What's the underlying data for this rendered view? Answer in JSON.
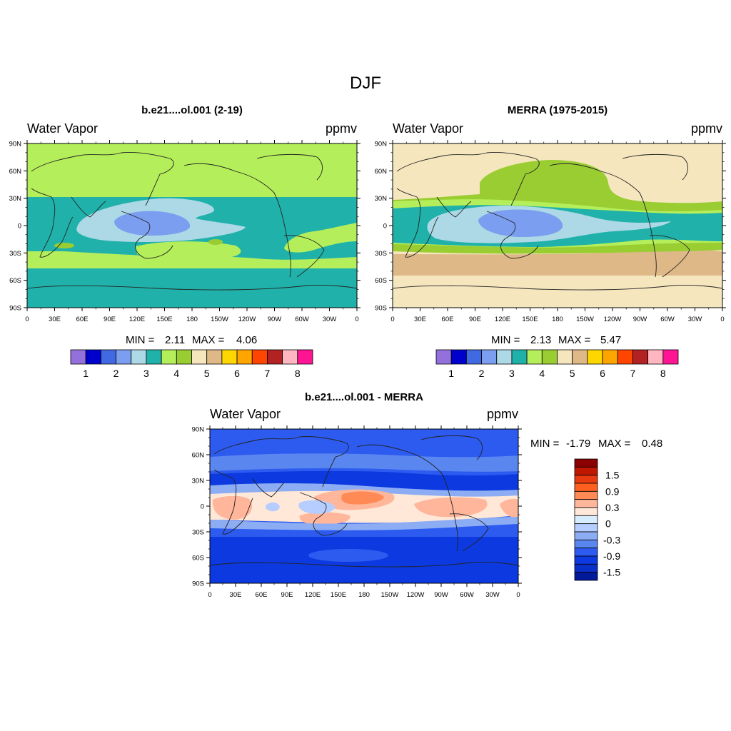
{
  "main_title": "DJF",
  "lat_ticks": [
    "90N",
    "60N",
    "30N",
    "0",
    "30S",
    "60S",
    "90S"
  ],
  "lon_ticks": [
    "0",
    "30E",
    "60E",
    "90E",
    "120E",
    "150E",
    "180",
    "150W",
    "120W",
    "90W",
    "60W",
    "30W",
    "0"
  ],
  "panels": [
    {
      "id": "model",
      "title": "b.e21....ol.001 (2-19)",
      "left_label": "Water Vapor",
      "right_label": "ppmv",
      "min_label": "MIN =",
      "min_value": "2.11",
      "max_label": "MAX =",
      "max_value": "4.06"
    },
    {
      "id": "merra",
      "title": "MERRA (1975-2015)",
      "left_label": "Water Vapor",
      "right_label": "ppmv",
      "min_label": "MIN =",
      "min_value": "2.13",
      "max_label": "MAX =",
      "max_value": "5.47"
    },
    {
      "id": "diff",
      "title": "b.e21....ol.001 - MERRA",
      "left_label": "Water Vapor",
      "right_label": "ppmv",
      "min_label": "MIN =",
      "min_value": "-1.79",
      "max_label": "MAX =",
      "max_value": "0.48"
    }
  ],
  "abs_colorbar": {
    "colors": [
      "#9370db",
      "#0000cd",
      "#4169e1",
      "#7b9ef0",
      "#add8e6",
      "#20b2aa",
      "#b4ee5a",
      "#9acd32",
      "#f5e6be",
      "#deb887",
      "#ffd700",
      "#ffa500",
      "#ff4500",
      "#b22222",
      "#ffb6c1",
      "#ff1493"
    ],
    "labels": [
      "1",
      "2",
      "3",
      "4",
      "5",
      "6",
      "7",
      "8"
    ]
  },
  "diff_colorbar": {
    "colors": [
      "#8b0000",
      "#c01800",
      "#e83a10",
      "#ff6020",
      "#ff8a55",
      "#ffb69a",
      "#ffe8d8",
      "#d8ecff",
      "#b6ceff",
      "#8cadf4",
      "#5a86ef",
      "#2d5bf0",
      "#0c3ae0",
      "#0a2ec8",
      "#001a99"
    ],
    "labels": [
      "1.5",
      "0.9",
      "0.3",
      "0",
      "-0.3",
      "-0.9",
      "-1.5"
    ]
  }
}
